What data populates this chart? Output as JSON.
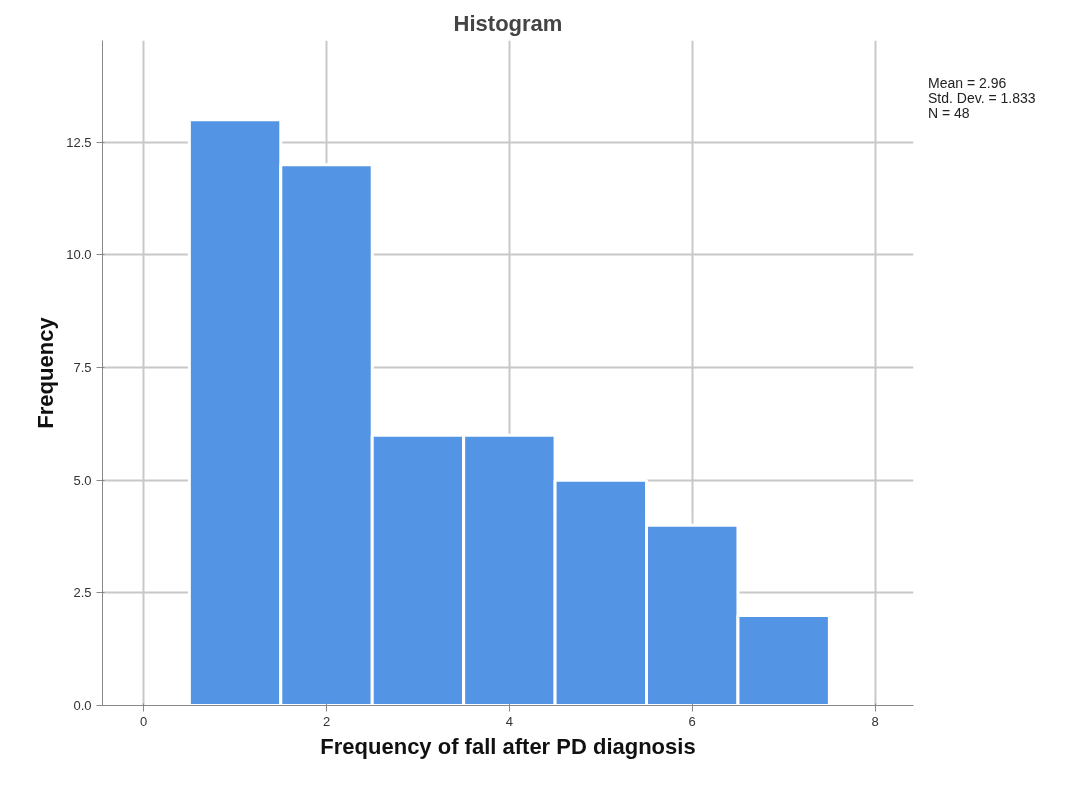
{
  "chart_data": {
    "type": "histogram",
    "title": "Histogram",
    "xlabel": "Frequency of fall after PD diagnosis",
    "ylabel": "Frequency",
    "bins": [
      0.5,
      1.5,
      2.5,
      3.5,
      4.5,
      5.5,
      6.5,
      7.5
    ],
    "values": [
      13,
      12,
      6,
      6,
      5,
      4,
      2
    ],
    "color": "#5494e4",
    "xlim": [
      -0.45,
      8.42
    ],
    "ylim": [
      0,
      14.76
    ],
    "xticks": [
      0,
      2,
      4,
      6,
      8
    ],
    "yticks": [
      {
        "value": 0,
        "label": "0.0"
      },
      {
        "value": 2.5,
        "label": "2.5"
      },
      {
        "value": 5,
        "label": "5.0"
      },
      {
        "value": 7.5,
        "label": "7.5"
      },
      {
        "value": 10,
        "label": "10.0"
      },
      {
        "value": 12.5,
        "label": "12.5"
      }
    ],
    "grid": true,
    "annotations": [
      "Mean = 2.96",
      "Std. Dev. = 1.833",
      "N = 48"
    ]
  }
}
